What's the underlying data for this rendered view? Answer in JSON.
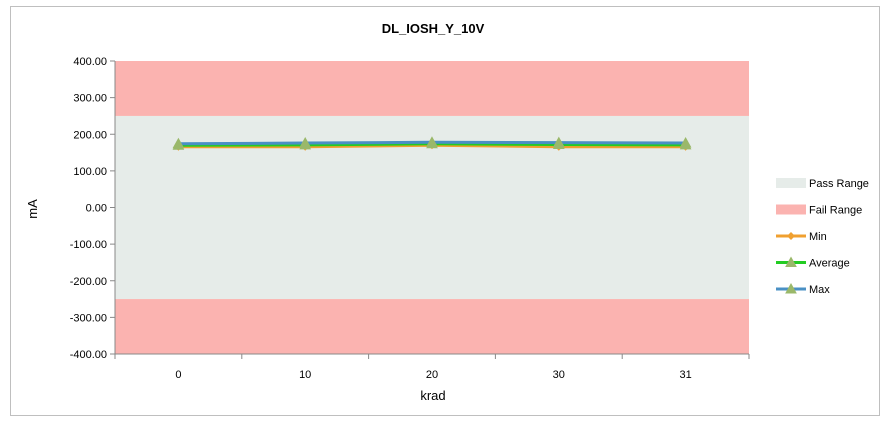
{
  "chart_data": {
    "type": "line",
    "title": "DL_IOSH_Y_10V",
    "xlabel": "krad",
    "ylabel": "mA",
    "categories": [
      "0",
      "10",
      "20",
      "30",
      "31"
    ],
    "ylim": [
      -400,
      400
    ],
    "yticks": [
      "400.00",
      "300.00",
      "200.00",
      "100.00",
      "0.00",
      "-100.00",
      "-200.00",
      "-300.00",
      "-400.00"
    ],
    "ytick_values": [
      400,
      300,
      200,
      100,
      0,
      -100,
      -200,
      -300,
      -400
    ],
    "pass_range": [
      -250,
      250
    ],
    "fail_ranges": [
      [
        250,
        400
      ],
      [
        -400,
        -250
      ]
    ],
    "series": [
      {
        "name": "Min",
        "values": [
          166,
          166,
          170,
          166,
          166
        ],
        "color": "#f0a030",
        "marker": "diamond"
      },
      {
        "name": "Average",
        "values": [
          170,
          171,
          174,
          172,
          171
        ],
        "color": "#22cc22",
        "marker": "triangle"
      },
      {
        "name": "Max",
        "values": [
          174,
          176,
          178,
          177,
          176
        ],
        "color": "#4a90c4",
        "marker": "triangle"
      }
    ],
    "legend": {
      "position": "right",
      "pass_label": "Pass Range",
      "fail_label": "Fail Range",
      "pass_color": "#e6ece9",
      "fail_color": "#fbb3b0"
    },
    "grid": false
  }
}
